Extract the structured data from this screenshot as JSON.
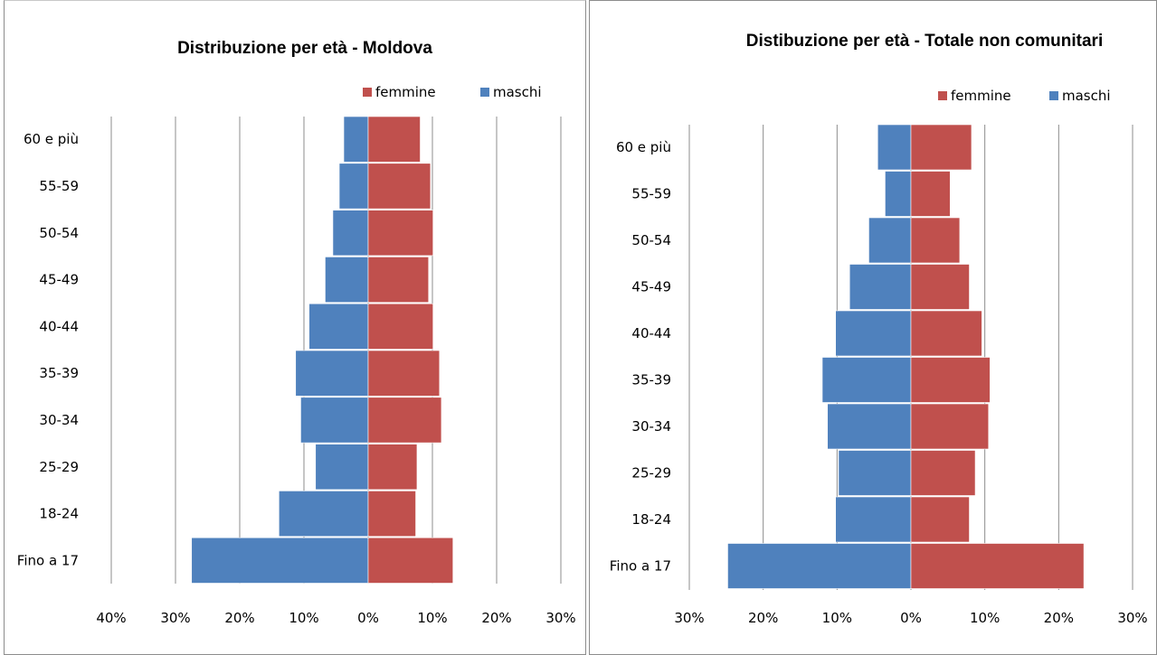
{
  "chart_data": [
    {
      "type": "bar",
      "orientation": "horizontal-population-pyramid",
      "title": "Distribuzione per età - Moldova",
      "categories": [
        "Fino a 17",
        "18-24",
        "25-29",
        "30-34",
        "35-39",
        "40-44",
        "45-49",
        "50-54",
        "55-59",
        "60 e più"
      ],
      "series": [
        {
          "name": "femmine",
          "color": "#c0504d",
          "values": [
            13.2,
            7.4,
            7.6,
            11.4,
            11.1,
            10.1,
            9.4,
            10.1,
            9.7,
            8.1
          ]
        },
        {
          "name": "maschi",
          "color": "#4f81bd",
          "values": [
            27.5,
            13.9,
            8.2,
            10.5,
            11.3,
            9.2,
            6.7,
            5.5,
            4.5,
            3.8
          ]
        }
      ],
      "x_ticks": [
        "40%",
        "30%",
        "20%",
        "10%",
        "0%",
        "10%",
        "20%",
        "30%"
      ],
      "xlim": [
        -40,
        30
      ],
      "legend_position": "top-right",
      "gridlines": true
    },
    {
      "type": "bar",
      "orientation": "horizontal-population-pyramid",
      "title": "Distibuzione per età - Totale non comunitari",
      "categories": [
        "Fino a 17",
        "18-24",
        "25-29",
        "30-34",
        "35-39",
        "40-44",
        "45-49",
        "50-54",
        "55-59",
        "60 e più"
      ],
      "series": [
        {
          "name": "femmine",
          "color": "#c0504d",
          "values": [
            23.4,
            7.9,
            8.7,
            10.5,
            10.7,
            9.6,
            7.9,
            6.6,
            5.3,
            8.2
          ]
        },
        {
          "name": "maschi",
          "color": "#4f81bd",
          "values": [
            24.8,
            10.2,
            9.8,
            11.3,
            12.0,
            10.2,
            8.3,
            5.7,
            3.5,
            4.5
          ]
        }
      ],
      "x_ticks": [
        "30%",
        "20%",
        "10%",
        "0%",
        "10%",
        "20%",
        "30%"
      ],
      "xlim": [
        -30,
        30
      ],
      "legend_position": "top-right",
      "gridlines": true
    }
  ]
}
